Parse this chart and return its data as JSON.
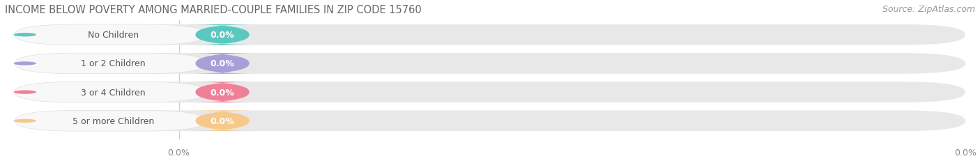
{
  "title": "INCOME BELOW POVERTY AMONG MARRIED-COUPLE FAMILIES IN ZIP CODE 15760",
  "source": "Source: ZipAtlas.com",
  "categories": [
    "No Children",
    "1 or 2 Children",
    "3 or 4 Children",
    "5 or more Children"
  ],
  "values": [
    0.0,
    0.0,
    0.0,
    0.0
  ],
  "bar_colors": [
    "#5bc8c0",
    "#a89fd8",
    "#f08098",
    "#f5c98a"
  ],
  "background_color": "#ffffff",
  "bar_bg_color": "#e8e8e8",
  "title_fontsize": 10.5,
  "source_fontsize": 9,
  "label_fontsize": 9,
  "value_fontsize": 9
}
